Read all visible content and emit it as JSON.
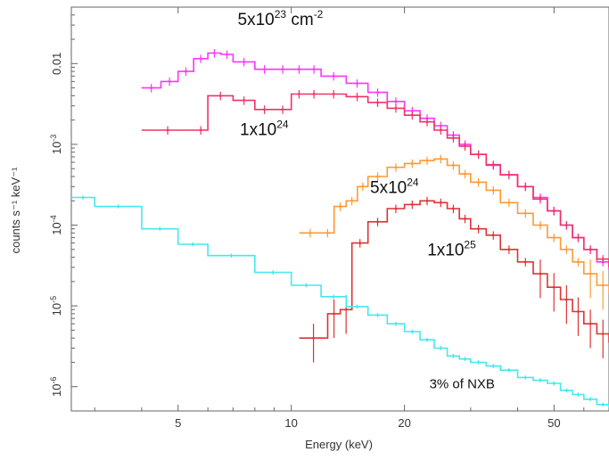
{
  "chart_data": {
    "type": "line",
    "title": "",
    "xlabel": "Energy (keV)",
    "ylabel": "counts s⁻¹ keV⁻¹",
    "xscale": "log",
    "yscale": "log",
    "xlim": [
      2.6,
      70
    ],
    "ylim": [
      5e-07,
      0.05
    ],
    "grid": false,
    "x_ticks": [
      {
        "value": 5,
        "label": "5"
      },
      {
        "value": 10,
        "label": "10"
      },
      {
        "value": 20,
        "label": "20"
      },
      {
        "value": 50,
        "label": "50"
      }
    ],
    "y_ticks": [
      {
        "value": 1e-06,
        "base": "10",
        "exp": "-6"
      },
      {
        "value": 1e-05,
        "base": "10",
        "exp": "-5"
      },
      {
        "value": 0.0001,
        "base": "10",
        "exp": "-4"
      },
      {
        "value": 0.001,
        "base": "10",
        "exp": "-3"
      },
      {
        "value": 0.01,
        "base": "0.01",
        "exp": ""
      }
    ],
    "series": [
      {
        "color": "#ff33ff",
        "x": [
          4,
          4.5,
          5,
          5.5,
          6,
          6.5,
          7,
          8,
          9,
          10,
          11,
          12,
          14,
          16,
          18,
          20,
          22,
          24,
          26,
          28,
          30,
          33,
          36,
          40,
          44,
          48,
          52,
          56,
          60,
          65,
          70
        ],
        "y": [
          0.005,
          0.006,
          0.008,
          0.0115,
          0.0135,
          0.013,
          0.0105,
          0.0085,
          0.0085,
          0.0085,
          0.0085,
          0.007,
          0.0057,
          0.0044,
          0.0034,
          0.0026,
          0.0021,
          0.0017,
          0.0013,
          0.001,
          0.00075,
          0.00055,
          0.00042,
          0.0003,
          0.00022,
          0.00015,
          0.0001,
          7e-05,
          5e-05,
          3.5e-05,
          2.8e-05
        ]
      },
      {
        "color": "#ee3366",
        "x": [
          4,
          5.5,
          6,
          7,
          8,
          9,
          10,
          11,
          12,
          14,
          16,
          18,
          20,
          22,
          24,
          26,
          28,
          30,
          33,
          36,
          40,
          44,
          48,
          52,
          56,
          60,
          65,
          70
        ],
        "y": [
          0.0015,
          0.0015,
          0.004,
          0.0035,
          0.0027,
          0.0027,
          0.0042,
          0.0042,
          0.0042,
          0.0039,
          0.0033,
          0.0028,
          0.0023,
          0.0019,
          0.0015,
          0.0012,
          0.00095,
          0.00075,
          0.00056,
          0.00042,
          0.0003,
          0.00021,
          0.00015,
          0.0001,
          7e-05,
          5e-05,
          3.8e-05,
          3e-05
        ]
      },
      {
        "color": "#ff9933",
        "x": [
          10.5,
          12,
          13,
          14,
          15,
          16,
          18,
          20,
          22,
          24,
          26,
          28,
          30,
          33,
          36,
          40,
          44,
          48,
          52,
          56,
          60,
          65,
          70
        ],
        "y": [
          8e-05,
          8e-05,
          0.00017,
          0.0002,
          0.0003,
          0.0004,
          0.00052,
          0.00058,
          0.00063,
          0.00066,
          0.00055,
          0.00043,
          0.00034,
          0.00027,
          0.00019,
          0.00014,
          0.0001,
          7e-05,
          5e-05,
          3.5e-05,
          2.5e-05,
          1.8e-05,
          1.4e-05
        ]
      },
      {
        "color": "#dd3333",
        "x": [
          10.5,
          12.5,
          13.5,
          14.5,
          16,
          18,
          20,
          22,
          24,
          26,
          28,
          30,
          33,
          36,
          40,
          44,
          48,
          52,
          56,
          60,
          65,
          70
        ],
        "y": [
          4e-06,
          8e-06,
          9e-06,
          6e-05,
          0.00011,
          0.00016,
          0.00018,
          0.0002,
          0.00019,
          0.00016,
          0.00012,
          9e-05,
          7.5e-05,
          5e-05,
          3.5e-05,
          2.5e-05,
          1.7e-05,
          1.2e-05,
          8.5e-06,
          6e-06,
          4.5e-06,
          3.5e-06
        ]
      },
      {
        "color": "#44e8f0",
        "x": [
          2.6,
          3,
          4,
          5,
          6,
          8,
          10,
          12,
          14,
          16,
          18,
          20,
          22,
          24,
          26,
          28,
          30,
          33,
          36,
          40,
          44,
          48,
          52,
          56,
          60,
          65,
          70
        ],
        "y": [
          0.00022,
          0.00017,
          9e-05,
          5.8e-05,
          4.2e-05,
          2.6e-05,
          1.8e-05,
          1.3e-05,
          9.8e-06,
          7.7e-06,
          6e-06,
          4.8e-06,
          3.8e-06,
          3e-06,
          2.4e-06,
          2.2e-06,
          2e-06,
          1.8e-06,
          1.6e-06,
          1.3e-06,
          1.2e-06,
          1.1e-06,
          9e-07,
          8e-07,
          7e-07,
          6e-07,
          5.5e-07
        ]
      }
    ],
    "annotations": [
      {
        "base": "5x10",
        "sup": "23",
        "tail": " cm",
        "tail_sup": "-2",
        "x": 7.2,
        "y": 0.03
      },
      {
        "base": "1x10",
        "sup": "24",
        "tail": "",
        "tail_sup": "",
        "x": 7.3,
        "y": 0.0013
      },
      {
        "base": "5x10",
        "sup": "24",
        "tail": "",
        "tail_sup": "",
        "x": 16.2,
        "y": 0.00025
      },
      {
        "base": "1x10",
        "sup": "25",
        "tail": "",
        "tail_sup": "",
        "x": 23.0,
        "y": 4.2e-05
      },
      {
        "base": "3% of NXB",
        "sup": "",
        "tail": "",
        "tail_sup": "",
        "x": 23.3,
        "y": 9.5e-07
      }
    ]
  }
}
